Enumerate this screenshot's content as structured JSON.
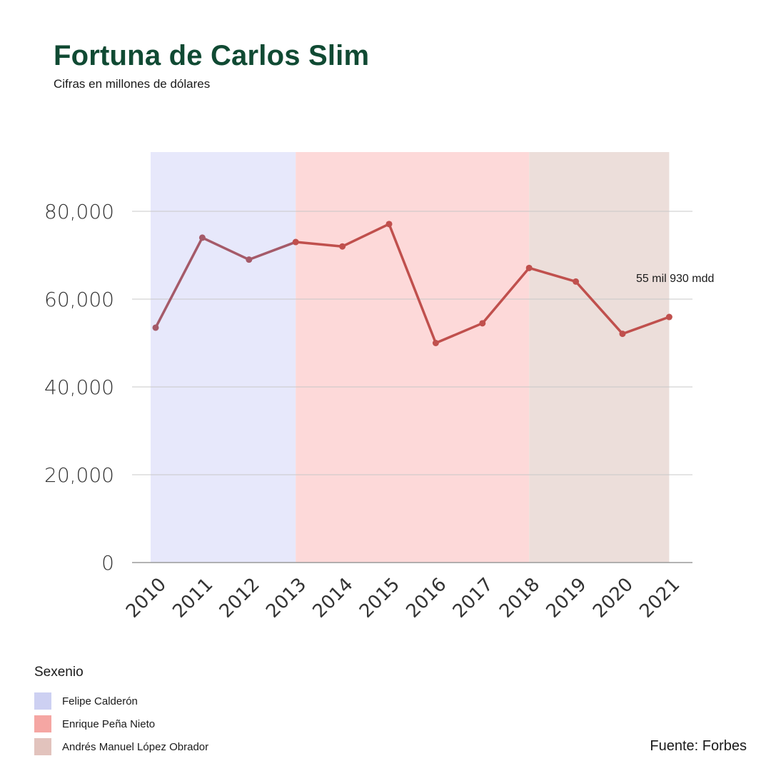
{
  "title": "Fortuna de Carlos Slim",
  "subtitle": "Cifras en millones de dólares",
  "source": "Fuente: Forbes",
  "legend": {
    "title": "Sexenio",
    "items": [
      {
        "label": "Felipe Calderón",
        "color": "#cdd0f2"
      },
      {
        "label": "Enrique Peña Nieto",
        "color": "#f5a6a3"
      },
      {
        "label": "Andrés Manuel López Obrador",
        "color": "#e2c3bd"
      }
    ]
  },
  "chart_data": {
    "type": "line",
    "title": "Fortuna de Carlos Slim",
    "subtitle": "Cifras en millones de dólares",
    "categories": [
      "2010",
      "2011",
      "2012",
      "2013",
      "2014",
      "2015",
      "2016",
      "2017",
      "2018",
      "2019",
      "2020",
      "2021"
    ],
    "series": [
      {
        "values": [
          53500,
          74000,
          69000,
          73000,
          72000,
          77100,
          50000,
          54500,
          67100,
          64000,
          52100,
          55930
        ],
        "color": "#c0504d"
      }
    ],
    "ylim": [
      0,
      80000
    ],
    "yticks": [
      0,
      20000,
      40000,
      60000,
      80000
    ],
    "ytick_labels": [
      "0",
      "20,000",
      "40,000",
      "60,000",
      "80,000"
    ],
    "grid": true,
    "shaded_periods": [
      {
        "start": "2010",
        "end": "2013",
        "color": "#e7e8fb"
      },
      {
        "start": "2013",
        "end": "2018",
        "color": "#fdd9d9"
      },
      {
        "start": "2018",
        "end": "2021",
        "color": "#ecdeda"
      }
    ],
    "annotations": [
      {
        "text": "55 mil 930 mdd",
        "year": "2021"
      }
    ]
  }
}
